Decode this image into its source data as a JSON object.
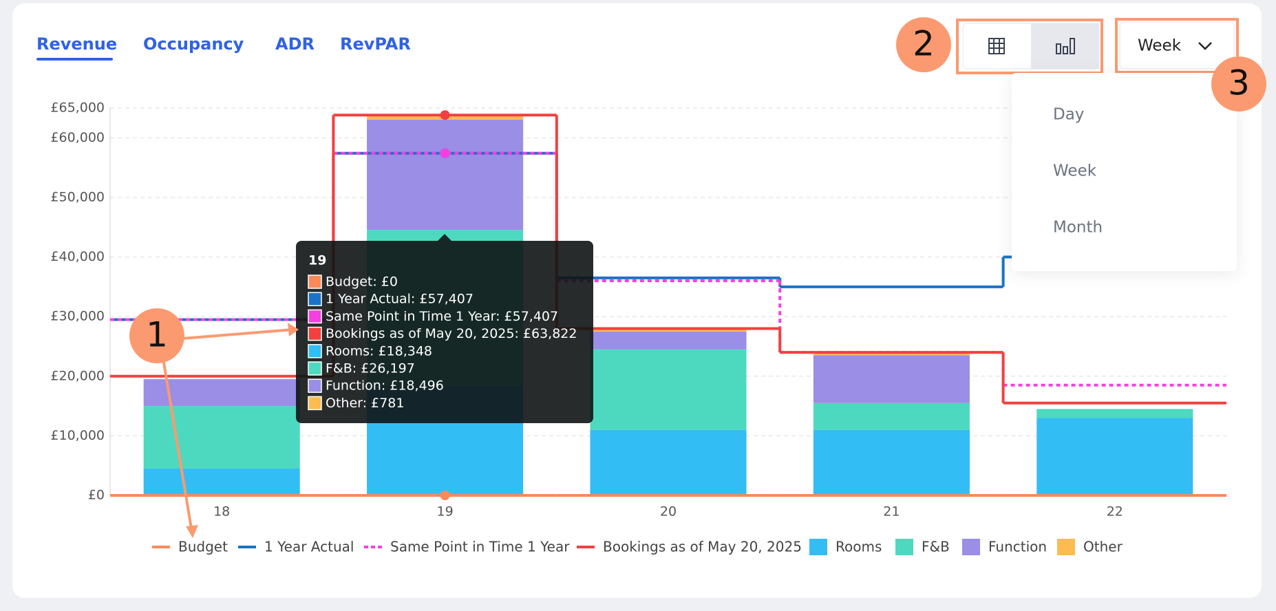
{
  "tabs": [
    "Revenue",
    "Occupancy",
    "ADR",
    "RevPAR"
  ],
  "period_dropdown": {
    "selected": "Week",
    "options": [
      "Day",
      "Week",
      "Month"
    ]
  },
  "callouts": [
    "1",
    "2",
    "3"
  ],
  "tooltip": {
    "title": "19",
    "items": [
      "Budget: £0",
      "1 Year Actual: £57,407",
      "Same Point in Time 1 Year: £57,407",
      "Bookings as of May 20, 2025: £63,822",
      "Rooms: £18,348",
      "F&B: £26,197",
      "Function: £18,496",
      "Other: £781"
    ]
  },
  "chart_data": {
    "type": "bar",
    "stacked": true,
    "categories": [
      "18",
      "19",
      "20",
      "21",
      "22"
    ],
    "ylim": [
      0,
      65000
    ],
    "yticks": [
      {
        "value": 0,
        "label": "£0"
      },
      {
        "value": 10000,
        "label": "£10,000"
      },
      {
        "value": 20000,
        "label": "£20,000"
      },
      {
        "value": 30000,
        "label": "£30,000"
      },
      {
        "value": 40000,
        "label": "£40,000"
      },
      {
        "value": 50000,
        "label": "£50,000"
      },
      {
        "value": 60000,
        "label": "£60,000"
      },
      {
        "value": 65000,
        "label": "£65,000"
      }
    ],
    "grid": true,
    "series": [
      {
        "name": "Budget",
        "kind": "line",
        "color": "#f98b5a",
        "values": [
          0,
          0,
          0,
          0,
          0
        ]
      },
      {
        "name": "1 Year Actual",
        "kind": "line",
        "color": "#1a73c8",
        "values": [
          29500,
          57407,
          36500,
          35000,
          40000
        ]
      },
      {
        "name": "Same Point in Time 1 Year",
        "kind": "line",
        "dashed": true,
        "color": "#f53fe0",
        "values": [
          29500,
          57407,
          36000,
          24000,
          18500
        ]
      },
      {
        "name": "Bookings as of May 20, 2025",
        "kind": "line",
        "color": "#f24040",
        "values": [
          20000,
          63822,
          28000,
          24000,
          15500
        ]
      },
      {
        "name": "Rooms",
        "kind": "bar",
        "color": "#33bdf5",
        "values": [
          4500,
          18348,
          11000,
          11000,
          13000
        ]
      },
      {
        "name": "F&B",
        "kind": "bar",
        "color": "#4dd9bf",
        "values": [
          10500,
          26197,
          13500,
          4500,
          1500
        ]
      },
      {
        "name": "Function",
        "kind": "bar",
        "color": "#9a8ee6",
        "values": [
          4500,
          18496,
          3000,
          8000,
          0
        ]
      },
      {
        "name": "Other",
        "kind": "bar",
        "color": "#fcbc50",
        "values": [
          0,
          781,
          500,
          500,
          0
        ]
      }
    ]
  }
}
